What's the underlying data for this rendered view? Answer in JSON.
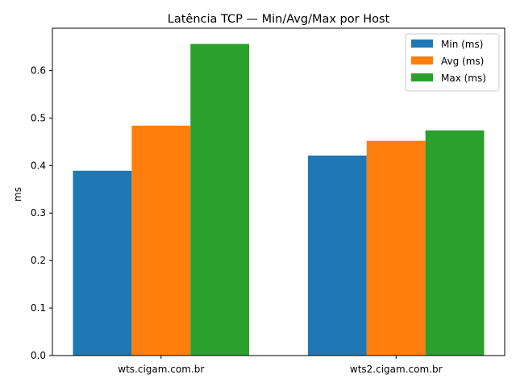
{
  "chart_data": {
    "type": "bar",
    "title": "Latência TCP — Min/Avg/Max por Host",
    "xlabel": "",
    "ylabel": "ms",
    "categories": [
      "wts.cigam.com.br",
      "wts2.cigam.com.br"
    ],
    "series": [
      {
        "name": "Min (ms)",
        "values": [
          0.389,
          0.421
        ],
        "color": "#1f77b4"
      },
      {
        "name": "Avg (ms)",
        "values": [
          0.484,
          0.452
        ],
        "color": "#ff7f0e"
      },
      {
        "name": "Max (ms)",
        "values": [
          0.656,
          0.474
        ],
        "color": "#2ca02c"
      }
    ],
    "ylim": [
      0,
      0.689
    ],
    "yticks": [
      "0.0",
      "0.1",
      "0.2",
      "0.3",
      "0.4",
      "0.5",
      "0.6"
    ],
    "legend_position": "top-right",
    "grid": false
  }
}
